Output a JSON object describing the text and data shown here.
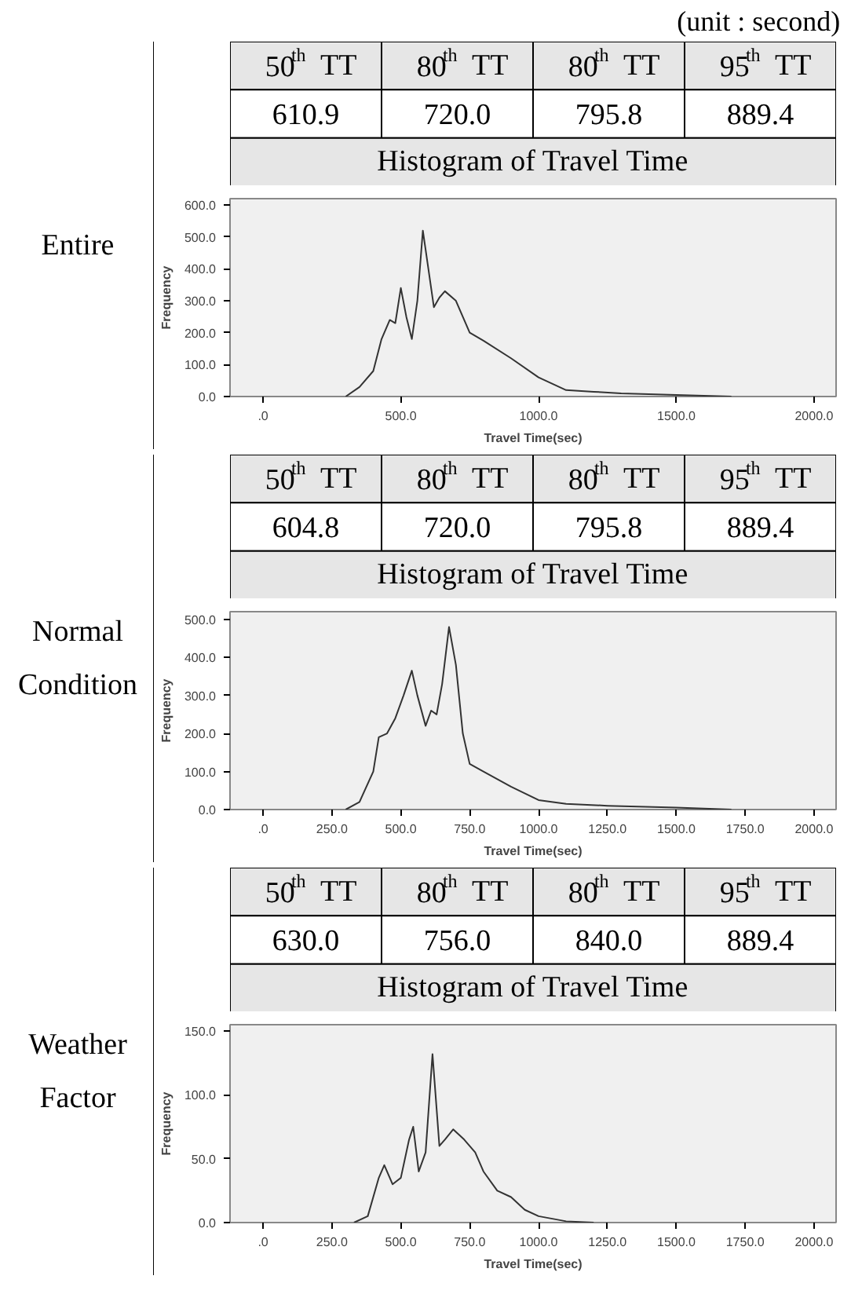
{
  "chart_data": [
    {
      "type": "other",
      "title": "Entire",
      "subtitle": "Histogram of Travel Time",
      "categories": [
        "50$^{th}$ TT",
        "80$^{th}$ TT",
        "80$^{th}$ TT",
        "95$^{th}$ TT"
      ],
      "value_labels": [
        "610.9",
        "720.0",
        "795.8",
        "889.4"
      ],
      "annotations": [
        "(unit : second)"
      ]
    },
    {
      "type": "line",
      "xlabel": "Travel Time(sec)",
      "ylabel": "Frequency",
      "xlim": [
        -120,
        2080
      ],
      "ylim": [
        0,
        620
      ],
      "xticks": [
        {
          "value": 0,
          "label": ".0"
        },
        {
          "value": 500,
          "label": "500.0"
        },
        {
          "value": 1000,
          "label": "1000.0"
        },
        {
          "value": 1500,
          "label": "1500.0"
        },
        {
          "value": 2000,
          "label": "2000.0"
        }
      ],
      "yticks": [
        {
          "value": 0,
          "label": "0.0"
        },
        {
          "value": 100,
          "label": "100.0"
        },
        {
          "value": 200,
          "label": "200.0"
        },
        {
          "value": 300,
          "label": "300.0"
        },
        {
          "value": 400,
          "label": "400.0"
        },
        {
          "value": 500,
          "label": "500.0"
        },
        {
          "value": 600,
          "label": "600.0"
        }
      ],
      "grid": false,
      "series": [
        {
          "color": "#333333",
          "x": [
            300,
            350,
            400,
            430,
            460,
            480,
            500,
            520,
            540,
            560,
            580,
            600,
            620,
            640,
            660,
            700,
            750,
            800,
            900,
            1000,
            1100,
            1200,
            1300,
            1500,
            1700
          ],
          "values": [
            0,
            30,
            80,
            180,
            240,
            230,
            340,
            250,
            180,
            300,
            520,
            400,
            280,
            310,
            330,
            300,
            200,
            175,
            120,
            60,
            20,
            15,
            10,
            5,
            0
          ]
        }
      ]
    },
    {
      "type": "other",
      "title": "Normal Condition",
      "subtitle": "Histogram of Travel Time",
      "categories": [
        "50$^{th}$ TT",
        "80$^{th}$ TT",
        "80$^{th}$ TT",
        "95$^{th}$ TT"
      ],
      "value_labels": [
        "604.8",
        "720.0",
        "795.8",
        "889.4"
      ]
    },
    {
      "type": "line",
      "xlabel": "Travel Time(sec)",
      "ylabel": "Frequency",
      "xlim": [
        -120,
        2080
      ],
      "ylim": [
        0,
        520
      ],
      "xticks": [
        {
          "value": 0,
          "label": ".0"
        },
        {
          "value": 250,
          "label": "250.0"
        },
        {
          "value": 500,
          "label": "500.0"
        },
        {
          "value": 750,
          "label": "750.0"
        },
        {
          "value": 1000,
          "label": "1000.0"
        },
        {
          "value": 1250,
          "label": "1250.0"
        },
        {
          "value": 1500,
          "label": "1500.0"
        },
        {
          "value": 1750,
          "label": "1750.0"
        },
        {
          "value": 2000,
          "label": "2000.0"
        }
      ],
      "yticks": [
        {
          "value": 0,
          "label": "0.0"
        },
        {
          "value": 100,
          "label": "100.0"
        },
        {
          "value": 200,
          "label": "200.0"
        },
        {
          "value": 300,
          "label": "300.0"
        },
        {
          "value": 400,
          "label": "400.0"
        },
        {
          "value": 500,
          "label": "500.0"
        }
      ],
      "grid": false,
      "series": [
        {
          "color": "#333333",
          "x": [
            300,
            350,
            400,
            420,
            450,
            480,
            510,
            540,
            560,
            590,
            610,
            630,
            650,
            675,
            700,
            725,
            750,
            800,
            900,
            1000,
            1100,
            1250,
            1500,
            1700
          ],
          "values": [
            0,
            20,
            100,
            190,
            200,
            240,
            300,
            365,
            300,
            220,
            260,
            250,
            330,
            480,
            380,
            200,
            120,
            100,
            60,
            25,
            15,
            10,
            5,
            0
          ]
        }
      ]
    },
    {
      "type": "other",
      "title": "Weather Factor",
      "subtitle": "Histogram of Travel Time",
      "categories": [
        "50$^{th}$ TT",
        "80$^{th}$ TT",
        "80$^{th}$ TT",
        "95$^{th}$ TT"
      ],
      "value_labels": [
        "630.0",
        "756.0",
        "840.0",
        "889.4"
      ]
    },
    {
      "type": "line",
      "xlabel": "Travel Time(sec)",
      "ylabel": "Frequency",
      "xlim": [
        -120,
        2080
      ],
      "ylim": [
        0,
        155
      ],
      "xticks": [
        {
          "value": 0,
          "label": ".0"
        },
        {
          "value": 250,
          "label": "250.0"
        },
        {
          "value": 500,
          "label": "500.0"
        },
        {
          "value": 750,
          "label": "750.0"
        },
        {
          "value": 1000,
          "label": "1000.0"
        },
        {
          "value": 1250,
          "label": "1250.0"
        },
        {
          "value": 1500,
          "label": "1500.0"
        },
        {
          "value": 1750,
          "label": "1750.0"
        },
        {
          "value": 2000,
          "label": "2000.0"
        }
      ],
      "yticks": [
        {
          "value": 0,
          "label": "0.0"
        },
        {
          "value": 50,
          "label": "50.0"
        },
        {
          "value": 100,
          "label": "100.0"
        },
        {
          "value": 150,
          "label": "150.0"
        }
      ],
      "grid": false,
      "series": [
        {
          "color": "#333333",
          "x": [
            330,
            380,
            420,
            440,
            470,
            500,
            530,
            545,
            565,
            590,
            615,
            640,
            660,
            690,
            730,
            770,
            800,
            850,
            900,
            950,
            1000,
            1050,
            1100,
            1200
          ],
          "values": [
            0,
            5,
            35,
            45,
            30,
            35,
            65,
            75,
            40,
            55,
            132,
            60,
            65,
            73,
            65,
            55,
            40,
            25,
            20,
            10,
            5,
            3,
            1,
            0
          ]
        }
      ]
    }
  ]
}
